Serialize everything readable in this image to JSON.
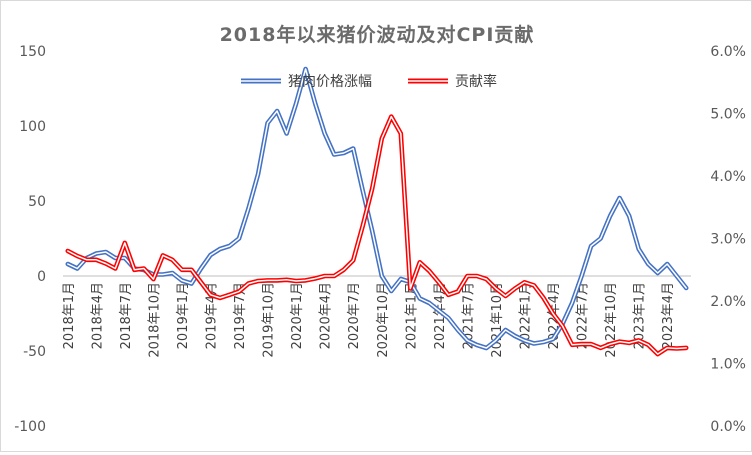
{
  "chart_data": {
    "type": "line",
    "title": "2018年以来猪价波动及对CPI贡献",
    "left_axis": {
      "ylim": [
        -100,
        150
      ],
      "ticks": [
        -100,
        -50,
        0,
        50,
        100,
        150
      ],
      "tick_labels": [
        "-100",
        "-50",
        "0",
        "50",
        "100",
        "150"
      ]
    },
    "right_axis": {
      "ylim": [
        0,
        6
      ],
      "ticks": [
        0,
        1,
        2,
        3,
        4,
        5,
        6
      ],
      "tick_labels": [
        "0.0%",
        "1.0%",
        "2.0%",
        "3.0%",
        "4.0%",
        "5.0%",
        "6.0%"
      ]
    },
    "legend_position": "top-center",
    "x_tick_labels": [
      "2018年1月",
      "2018年4月",
      "2018年7月",
      "2018年10月",
      "2019年1月",
      "2019年4月",
      "2019年7月",
      "2019年10月",
      "2020年1月",
      "2020年4月",
      "2020年7月",
      "2020年10月",
      "2021年1月",
      "2021年4月",
      "2021年7月",
      "2021年10月",
      "2022年1月",
      "2022年4月",
      "2022年7月",
      "2022年10月",
      "2023年1月",
      "2023年4月"
    ],
    "x": [
      "2018-01",
      "2018-02",
      "2018-03",
      "2018-04",
      "2018-05",
      "2018-06",
      "2018-07",
      "2018-08",
      "2018-09",
      "2018-10",
      "2018-11",
      "2018-12",
      "2019-01",
      "2019-02",
      "2019-03",
      "2019-04",
      "2019-05",
      "2019-06",
      "2019-07",
      "2019-08",
      "2019-09",
      "2019-10",
      "2019-11",
      "2019-12",
      "2020-01",
      "2020-02",
      "2020-03",
      "2020-04",
      "2020-05",
      "2020-06",
      "2020-07",
      "2020-08",
      "2020-09",
      "2020-10",
      "2020-11",
      "2020-12",
      "2021-01",
      "2021-02",
      "2021-03",
      "2021-04",
      "2021-05",
      "2021-06",
      "2021-07",
      "2021-08",
      "2021-09",
      "2021-10",
      "2021-11",
      "2021-12",
      "2022-01",
      "2022-02",
      "2022-03",
      "2022-04",
      "2022-05",
      "2022-06",
      "2022-07",
      "2022-08",
      "2022-09",
      "2022-10",
      "2022-11",
      "2022-12",
      "2023-01",
      "2023-02",
      "2023-03",
      "2023-04",
      "2023-05",
      "2023-06"
    ],
    "series": [
      {
        "name": "猪肉价格涨幅",
        "axis": "left",
        "color": "#4472c4",
        "values": [
          8,
          5,
          12,
          15,
          16,
          12,
          12,
          5,
          4,
          1,
          1,
          2,
          -3,
          -5,
          5,
          14,
          18,
          20,
          25,
          45,
          68,
          102,
          110,
          95,
          115,
          138,
          115,
          95,
          81,
          82,
          85,
          57,
          30,
          0,
          -10,
          -2,
          -4,
          -15,
          -18,
          -23,
          -28,
          -36,
          -43,
          -46,
          -48,
          -43,
          -36,
          -40,
          -43,
          -45,
          -44,
          -42,
          -32,
          -18,
          0,
          20,
          25,
          40,
          52,
          40,
          18,
          8,
          2,
          8,
          0,
          -8
        ]
      },
      {
        "name": "贡献率",
        "axis": "right",
        "color": "#ff0000",
        "values": [
          2.8,
          2.72,
          2.66,
          2.66,
          2.6,
          2.52,
          2.93,
          2.5,
          2.52,
          2.35,
          2.73,
          2.66,
          2.5,
          2.5,
          2.3,
          2.1,
          2.05,
          2.1,
          2.15,
          2.28,
          2.32,
          2.33,
          2.33,
          2.34,
          2.32,
          2.33,
          2.36,
          2.4,
          2.4,
          2.5,
          2.65,
          3.2,
          3.8,
          4.6,
          4.95,
          4.68,
          2.2,
          2.62,
          2.48,
          2.3,
          2.1,
          2.15,
          2.4,
          2.4,
          2.35,
          2.2,
          2.08,
          2.2,
          2.3,
          2.25,
          2.05,
          1.8,
          1.6,
          1.3,
          1.31,
          1.31,
          1.25,
          1.31,
          1.35,
          1.33,
          1.37,
          1.3,
          1.15,
          1.25,
          1.24,
          1.25
        ]
      }
    ]
  }
}
